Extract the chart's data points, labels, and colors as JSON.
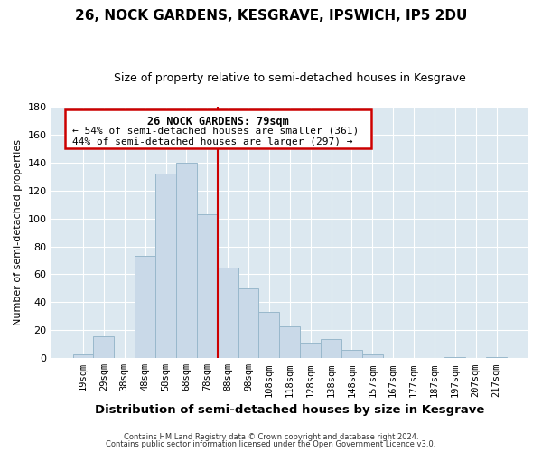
{
  "title1": "26, NOCK GARDENS, KESGRAVE, IPSWICH, IP5 2DU",
  "title2": "Size of property relative to semi-detached houses in Kesgrave",
  "xlabel": "Distribution of semi-detached houses by size in Kesgrave",
  "ylabel": "Number of semi-detached properties",
  "bin_labels": [
    "19sqm",
    "29sqm",
    "38sqm",
    "48sqm",
    "58sqm",
    "68sqm",
    "78sqm",
    "88sqm",
    "98sqm",
    "108sqm",
    "118sqm",
    "128sqm",
    "138sqm",
    "148sqm",
    "157sqm",
    "167sqm",
    "177sqm",
    "187sqm",
    "197sqm",
    "207sqm",
    "217sqm"
  ],
  "bin_values": [
    3,
    16,
    0,
    73,
    132,
    140,
    103,
    65,
    50,
    33,
    23,
    11,
    14,
    6,
    3,
    0,
    0,
    0,
    1,
    0,
    1
  ],
  "bar_color": "#c9d9e8",
  "bar_edgecolor": "#99b8cc",
  "property_line_bin_idx": 6,
  "annotation_text_line1": "26 NOCK GARDENS: 79sqm",
  "annotation_text_line2": "← 54% of semi-detached houses are smaller (361)",
  "annotation_text_line3": "44% of semi-detached houses are larger (297) →",
  "vline_color": "#cc0000",
  "box_edgecolor": "#cc0000",
  "ylim": [
    0,
    180
  ],
  "yticks": [
    0,
    20,
    40,
    60,
    80,
    100,
    120,
    140,
    160,
    180
  ],
  "footer1": "Contains HM Land Registry data © Crown copyright and database right 2024.",
  "footer2": "Contains public sector information licensed under the Open Government Licence v3.0.",
  "bg_color": "#ffffff",
  "plot_bg_color": "#dce8f0",
  "grid_color": "#ffffff",
  "title1_fontsize": 11,
  "title2_fontsize": 9
}
